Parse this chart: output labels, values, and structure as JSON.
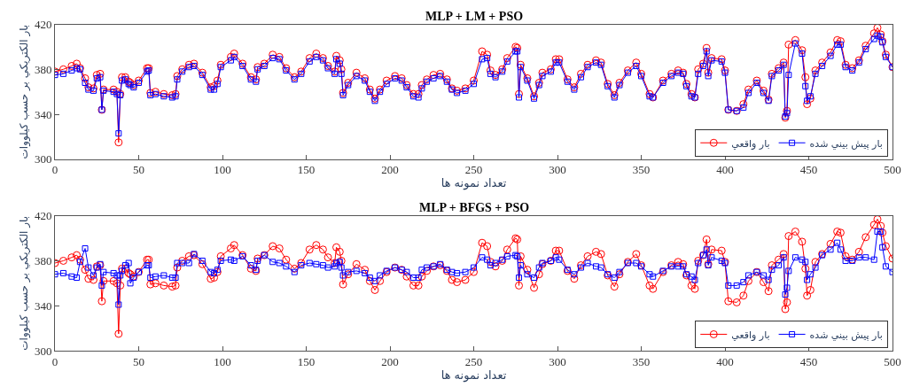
{
  "chart_data": [
    {
      "type": "line",
      "title": "MLP + LM + PSO",
      "xlabel": "تعداد نمونه ها",
      "ylabel": "بار الكتريكي بر حسب كيلووات",
      "xlim": [
        0,
        500
      ],
      "xticks": [
        0,
        50,
        100,
        150,
        200,
        250,
        300,
        350,
        400,
        450,
        500
      ],
      "ylim": [
        300,
        420
      ],
      "yticks": [
        300,
        340,
        380,
        420
      ],
      "legend": "bottom right",
      "x": [
        0,
        5,
        10,
        13,
        15,
        18,
        20,
        23,
        25,
        27,
        28,
        29,
        35,
        37,
        38,
        39,
        40,
        42,
        44,
        45,
        47,
        50,
        55,
        56,
        57,
        60,
        65,
        70,
        72,
        73,
        76,
        80,
        83,
        88,
        93,
        95,
        97,
        99,
        105,
        107,
        112,
        117,
        120,
        121,
        125,
        130,
        134,
        138,
        143,
        147,
        152,
        156,
        160,
        163,
        167,
        168,
        170,
        171,
        172,
        175,
        180,
        185,
        188,
        191,
        194,
        198,
        203,
        207,
        210,
        214,
        217,
        219,
        222,
        226,
        230,
        234,
        237,
        240,
        245,
        250,
        255,
        258,
        260,
        263,
        267,
        270,
        275,
        276,
        277,
        278,
        282,
        286,
        289,
        291,
        296,
        299,
        301,
        306,
        310,
        314,
        318,
        323,
        326,
        330,
        334,
        337,
        342,
        347,
        350,
        355,
        357,
        363,
        368,
        372,
        375,
        377,
        380,
        382,
        384,
        387,
        389,
        390,
        392,
        398,
        400,
        402,
        407,
        411,
        414,
        419,
        423,
        426,
        428,
        432,
        435,
        436,
        437,
        438,
        442,
        446,
        448,
        449,
        451,
        454,
        458,
        463,
        467,
        469,
        472,
        476,
        480,
        484,
        489,
        491,
        493,
        494,
        496,
        500
      ],
      "series": [
        {
          "name": "بار واقعي",
          "color": "#ff0000",
          "marker": "circle",
          "values": [
            378,
            380,
            383,
            385,
            381,
            372,
            364,
            363,
            375,
            376,
            344,
            362,
            362,
            360,
            315,
            358,
            373,
            373,
            369,
            368,
            366,
            370,
            381,
            381,
            359,
            360,
            358,
            357,
            358,
            374,
            380,
            384,
            385,
            377,
            364,
            365,
            370,
            384,
            391,
            394,
            385,
            373,
            371,
            382,
            385,
            393,
            391,
            381,
            373,
            378,
            390,
            394,
            390,
            383,
            378,
            392,
            388,
            380,
            359,
            368,
            377,
            372,
            362,
            354,
            362,
            370,
            374,
            372,
            366,
            358,
            358,
            366,
            371,
            375,
            376,
            371,
            363,
            361,
            363,
            370,
            396,
            393,
            379,
            375,
            380,
            390,
            400,
            399,
            358,
            384,
            372,
            356,
            368,
            377,
            380,
            389,
            389,
            371,
            364,
            376,
            384,
            388,
            386,
            367,
            357,
            368,
            379,
            386,
            376,
            358,
            355,
            370,
            376,
            379,
            377,
            367,
            358,
            355,
            380,
            385,
            399,
            377,
            390,
            389,
            379,
            344,
            343,
            349,
            362,
            370,
            361,
            353,
            376,
            381,
            386,
            337,
            343,
            402,
            406,
            397,
            373,
            349,
            354,
            379,
            386,
            395,
            406,
            405,
            384,
            381,
            388,
            401,
            412,
            417,
            411,
            405,
            393,
            382
          ]
        },
        {
          "name": "بار پيش بيني شده",
          "color": "#0000ff",
          "marker": "square",
          "values": [
            375,
            376,
            379,
            381,
            380,
            368,
            362,
            361,
            372,
            373,
            344,
            361,
            360,
            358,
            323,
            357,
            370,
            371,
            367,
            366,
            364,
            368,
            378,
            379,
            357,
            358,
            356,
            355,
            356,
            371,
            378,
            382,
            383,
            375,
            362,
            362,
            367,
            382,
            388,
            391,
            383,
            371,
            369,
            380,
            383,
            390,
            389,
            379,
            371,
            376,
            387,
            391,
            388,
            381,
            376,
            389,
            385,
            376,
            357,
            366,
            374,
            370,
            360,
            352,
            360,
            367,
            372,
            370,
            364,
            356,
            355,
            363,
            369,
            372,
            374,
            369,
            362,
            359,
            361,
            367,
            389,
            390,
            376,
            373,
            378,
            387,
            396,
            396,
            355,
            382,
            370,
            354,
            366,
            374,
            378,
            386,
            386,
            369,
            362,
            373,
            382,
            386,
            384,
            365,
            355,
            366,
            377,
            383,
            374,
            356,
            355,
            368,
            374,
            377,
            376,
            365,
            356,
            355,
            376,
            383,
            396,
            374,
            388,
            387,
            377,
            344,
            343,
            346,
            359,
            368,
            359,
            352,
            374,
            379,
            384,
            338,
            341,
            375,
            403,
            394,
            365,
            352,
            356,
            376,
            383,
            392,
            402,
            402,
            382,
            379,
            386,
            398,
            407,
            410,
            409,
            404,
            391,
            382
          ]
        }
      ]
    },
    {
      "type": "line",
      "title": "MLP + BFGS + PSO",
      "xlabel": "تعداد نمونه ها",
      "ylabel": "بار الكتريكي بر حسب كيلووات",
      "xlim": [
        0,
        500
      ],
      "xticks": [
        0,
        50,
        100,
        150,
        200,
        250,
        300,
        350,
        400,
        450,
        500
      ],
      "ylim": [
        300,
        420
      ],
      "yticks": [
        300,
        340,
        380,
        420
      ],
      "legend": "bottom right",
      "x": [
        0,
        5,
        10,
        13,
        15,
        18,
        20,
        23,
        25,
        27,
        28,
        29,
        35,
        37,
        38,
        39,
        40,
        42,
        44,
        45,
        47,
        50,
        55,
        56,
        57,
        60,
        65,
        70,
        72,
        73,
        76,
        80,
        83,
        88,
        93,
        95,
        97,
        99,
        105,
        107,
        112,
        117,
        120,
        121,
        125,
        130,
        134,
        138,
        143,
        147,
        152,
        156,
        160,
        163,
        167,
        168,
        170,
        171,
        172,
        175,
        180,
        185,
        188,
        191,
        194,
        198,
        203,
        207,
        210,
        214,
        217,
        219,
        222,
        226,
        230,
        234,
        237,
        240,
        245,
        250,
        255,
        258,
        260,
        263,
        267,
        270,
        275,
        276,
        277,
        278,
        282,
        286,
        289,
        291,
        296,
        299,
        301,
        306,
        310,
        314,
        318,
        323,
        326,
        330,
        334,
        337,
        342,
        347,
        350,
        355,
        357,
        363,
        368,
        372,
        375,
        377,
        380,
        382,
        384,
        387,
        389,
        390,
        392,
        398,
        400,
        402,
        407,
        411,
        414,
        419,
        423,
        426,
        428,
        432,
        435,
        436,
        437,
        438,
        442,
        446,
        448,
        449,
        451,
        454,
        458,
        463,
        467,
        469,
        472,
        476,
        480,
        484,
        489,
        491,
        493,
        494,
        496,
        500
      ],
      "series": [
        {
          "name": "بار واقعي",
          "color": "#ff0000",
          "marker": "circle",
          "values": [
            378,
            380,
            383,
            385,
            381,
            372,
            364,
            363,
            375,
            376,
            344,
            362,
            362,
            360,
            315,
            358,
            373,
            373,
            369,
            368,
            366,
            370,
            381,
            381,
            359,
            360,
            358,
            357,
            358,
            374,
            380,
            384,
            385,
            377,
            364,
            365,
            370,
            384,
            391,
            394,
            385,
            373,
            371,
            382,
            385,
            393,
            391,
            381,
            373,
            378,
            390,
            394,
            390,
            383,
            378,
            392,
            388,
            380,
            359,
            368,
            377,
            372,
            362,
            354,
            362,
            370,
            374,
            372,
            366,
            358,
            358,
            366,
            371,
            375,
            376,
            371,
            363,
            361,
            363,
            370,
            396,
            393,
            379,
            375,
            380,
            390,
            400,
            399,
            358,
            384,
            372,
            356,
            368,
            377,
            380,
            389,
            389,
            371,
            364,
            376,
            384,
            388,
            386,
            367,
            357,
            368,
            379,
            386,
            376,
            358,
            355,
            370,
            376,
            379,
            377,
            367,
            358,
            355,
            380,
            385,
            399,
            377,
            390,
            389,
            379,
            344,
            343,
            349,
            362,
            370,
            361,
            353,
            376,
            381,
            386,
            337,
            343,
            402,
            406,
            397,
            373,
            349,
            354,
            379,
            386,
            395,
            406,
            405,
            384,
            381,
            388,
            401,
            412,
            417,
            411,
            405,
            393,
            382
          ]
        },
        {
          "name": "بار پيش بيني شده",
          "color": "#0000ff",
          "marker": "square",
          "values": [
            368,
            369,
            366,
            365,
            379,
            391,
            374,
            367,
            374,
            377,
            358,
            370,
            369,
            367,
            341,
            367,
            371,
            376,
            378,
            360,
            365,
            370,
            376,
            376,
            365,
            366,
            367,
            365,
            365,
            378,
            378,
            378,
            386,
            380,
            370,
            369,
            372,
            380,
            381,
            380,
            384,
            376,
            372,
            380,
            385,
            379,
            378,
            375,
            370,
            376,
            378,
            377,
            376,
            374,
            375,
            378,
            379,
            374,
            367,
            370,
            371,
            369,
            365,
            362,
            367,
            371,
            374,
            372,
            370,
            365,
            365,
            372,
            374,
            375,
            377,
            372,
            370,
            369,
            370,
            374,
            383,
            381,
            376,
            378,
            381,
            384,
            385,
            384,
            365,
            376,
            368,
            365,
            374,
            378,
            380,
            383,
            381,
            372,
            368,
            374,
            378,
            375,
            374,
            368,
            365,
            370,
            378,
            378,
            375,
            368,
            366,
            371,
            375,
            375,
            375,
            368,
            366,
            363,
            378,
            385,
            390,
            376,
            383,
            380,
            378,
            358,
            358,
            361,
            367,
            370,
            367,
            363,
            372,
            376,
            383,
            350,
            356,
            371,
            383,
            381,
            379,
            363,
            368,
            374,
            385,
            390,
            396,
            390,
            380,
            380,
            383,
            383,
            381,
            406,
            406,
            392,
            375,
            370
          ]
        }
      ]
    }
  ]
}
